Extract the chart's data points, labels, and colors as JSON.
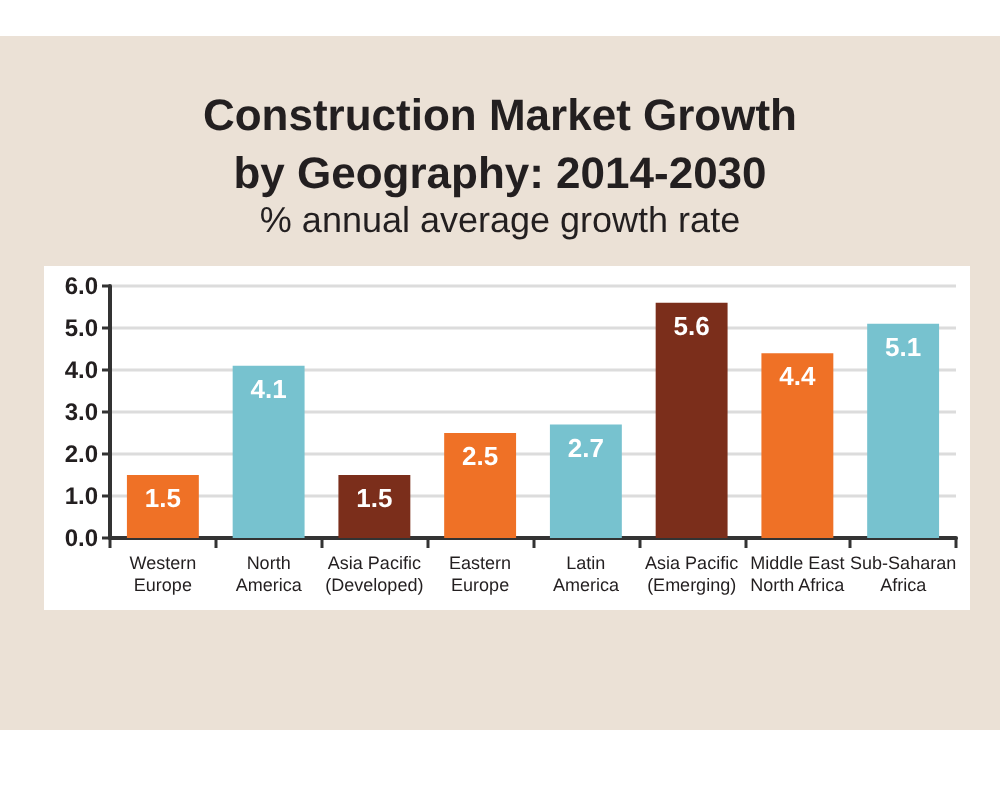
{
  "chart_data": {
    "type": "bar",
    "title": "Construction Market Growth by Geography: 2014-2030",
    "subtitle": "% annual average growth rate",
    "categories": [
      "Western Europe",
      "North America",
      "Asia Pacific (Developed)",
      "Eastern Europe",
      "Latin America",
      "Asia Pacific (Emerging)",
      "Middle East North Africa",
      "Sub-Saharan Africa"
    ],
    "values": [
      1.5,
      4.1,
      1.5,
      2.5,
      2.7,
      5.6,
      4.4,
      5.1
    ],
    "colors": [
      "#ef7126",
      "#77c2cf",
      "#7b2e1b",
      "#ef7126",
      "#77c2cf",
      "#7b2e1b",
      "#ef7126",
      "#77c2cf"
    ],
    "ylim": [
      0,
      6
    ],
    "yticks": [
      {
        "value": 0,
        "label": "0.0"
      },
      {
        "value": 1,
        "label": "1.0"
      },
      {
        "value": 2,
        "label": "2.0"
      },
      {
        "value": 3,
        "label": "3.0"
      },
      {
        "value": 4,
        "label": "4.0"
      },
      {
        "value": 5,
        "label": "5.0"
      },
      {
        "value": 6,
        "label": "6.0"
      }
    ],
    "grid": "y",
    "data_labels": true
  }
}
